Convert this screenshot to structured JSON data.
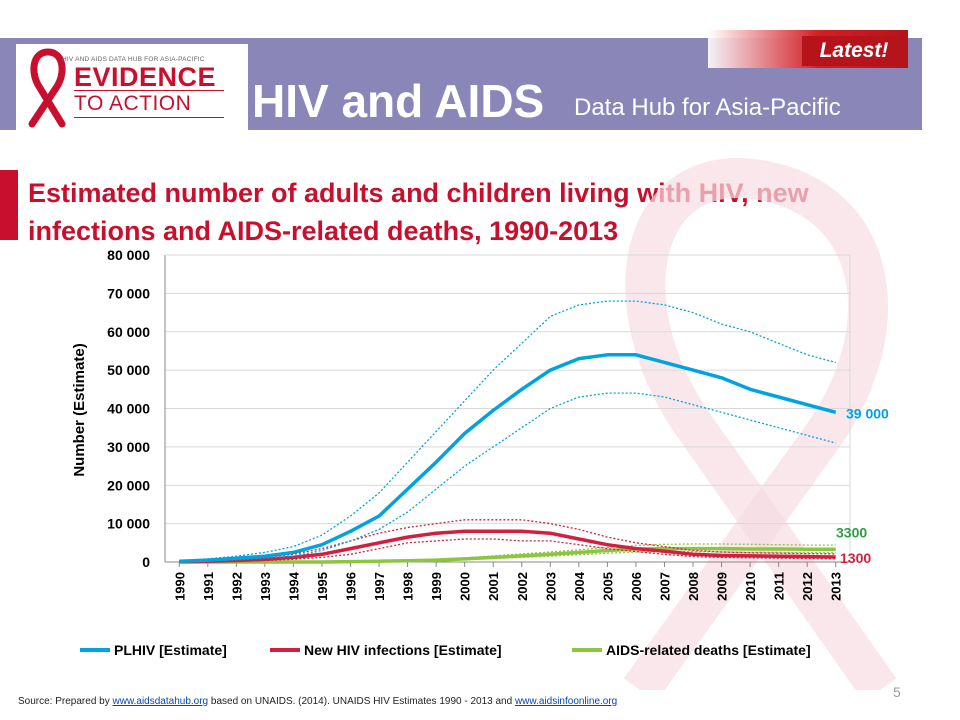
{
  "header": {
    "logo_small": "HIV AND AIDS DATA HUB FOR ASIA-PACIFIC",
    "logo_line1": "EVIDENCE",
    "logo_line2": "TO ACTION",
    "title": "HIV and AIDS",
    "subtitle": "Data Hub for Asia-Pacific",
    "badge": "Latest!"
  },
  "chart_data": {
    "type": "line",
    "title": "Estimated number of adults and children living with HIV, new infections and AIDS-related deaths, 1990-2013",
    "ylabel": "Number (Estimate)",
    "xlabel": "",
    "ylim": [
      0,
      80000
    ],
    "yticks": [
      0,
      10000,
      20000,
      30000,
      40000,
      50000,
      60000,
      70000,
      80000
    ],
    "ytick_labels": [
      "0",
      "10 000",
      "20 000",
      "30 000",
      "40 000",
      "50 000",
      "60 000",
      "70 000",
      "80 000"
    ],
    "x": [
      "1990",
      "1991",
      "1992",
      "1993",
      "1994",
      "1995",
      "1996",
      "1997",
      "1998",
      "1999",
      "2000",
      "2001",
      "2002",
      "2003",
      "2004",
      "2005",
      "2006",
      "2007",
      "2008",
      "2009",
      "2010",
      "2011",
      "2012",
      "2013"
    ],
    "grid": true,
    "legend_position": "bottom",
    "series": [
      {
        "name": "PLHIV [Estimate]",
        "color": "#00a3e0",
        "values": [
          200,
          500,
          1000,
          1500,
          2500,
          4500,
          8000,
          12000,
          19000,
          26000,
          33500,
          39500,
          45000,
          50000,
          53000,
          54000,
          54000,
          52000,
          50000,
          48000,
          45000,
          43000,
          41000,
          39000
        ],
        "upper": [
          300,
          800,
          1500,
          2500,
          4000,
          7000,
          12000,
          18000,
          26000,
          34000,
          42000,
          50000,
          57000,
          64000,
          67000,
          68000,
          68000,
          67000,
          65000,
          62000,
          60000,
          57000,
          54000,
          52000
        ],
        "lower": [
          100,
          300,
          600,
          1000,
          1500,
          3000,
          5500,
          8500,
          13000,
          19000,
          25000,
          30000,
          35000,
          40000,
          43000,
          44000,
          44000,
          43000,
          41000,
          39000,
          37000,
          35000,
          33000,
          31000
        ],
        "end_label": "39 000"
      },
      {
        "name": "New HIV infections [Estimate]",
        "color": "#d31f3f",
        "values": [
          100,
          200,
          400,
          700,
          1200,
          2000,
          3500,
          5000,
          6500,
          7500,
          8000,
          8000,
          8000,
          7500,
          6000,
          4500,
          3500,
          2800,
          2000,
          1700,
          1600,
          1500,
          1400,
          1300
        ],
        "upper": [
          200,
          400,
          700,
          1200,
          2000,
          3500,
          5500,
          7500,
          9000,
          10000,
          11000,
          11000,
          11000,
          10000,
          8500,
          6500,
          5000,
          4000,
          3000,
          2600,
          2400,
          2300,
          2200,
          2100
        ],
        "lower": [
          50,
          100,
          200,
          400,
          700,
          1200,
          2000,
          3500,
          5000,
          5500,
          6000,
          6000,
          5500,
          5500,
          4500,
          3500,
          2700,
          2000,
          1400,
          1200,
          1100,
          1000,
          900,
          800
        ],
        "end_label": "1300"
      },
      {
        "name": "AIDS-related deaths [Estimate]",
        "color": "#8cc63f",
        "values": [
          0,
          0,
          0,
          0,
          0,
          0,
          100,
          200,
          300,
          500,
          800,
          1200,
          1600,
          2000,
          2500,
          3000,
          3400,
          3500,
          3500,
          3500,
          3400,
          3400,
          3300,
          3300
        ],
        "upper": [
          0,
          0,
          0,
          0,
          0,
          100,
          200,
          300,
          500,
          700,
          1100,
          1600,
          2100,
          2600,
          3200,
          3800,
          4300,
          4600,
          4700,
          4700,
          4600,
          4500,
          4400,
          4400
        ],
        "lower": [
          0,
          0,
          0,
          0,
          0,
          0,
          50,
          100,
          200,
          300,
          600,
          900,
          1200,
          1500,
          1900,
          2300,
          2600,
          2700,
          2700,
          2600,
          2500,
          2500,
          2400,
          2400
        ],
        "end_label": "3300",
        "end_label_color": "#2e9e44"
      }
    ]
  },
  "footer": {
    "source_prefix": "Source: Prepared by ",
    "source_link1": "www.aidsdatahub.org",
    "source_middle": " based on  UNAIDS. (2014). UNAIDS HIV Estimates 1990 - 2013 and ",
    "source_link2": "www.aidsinfoonline.org",
    "page_number": "5"
  }
}
